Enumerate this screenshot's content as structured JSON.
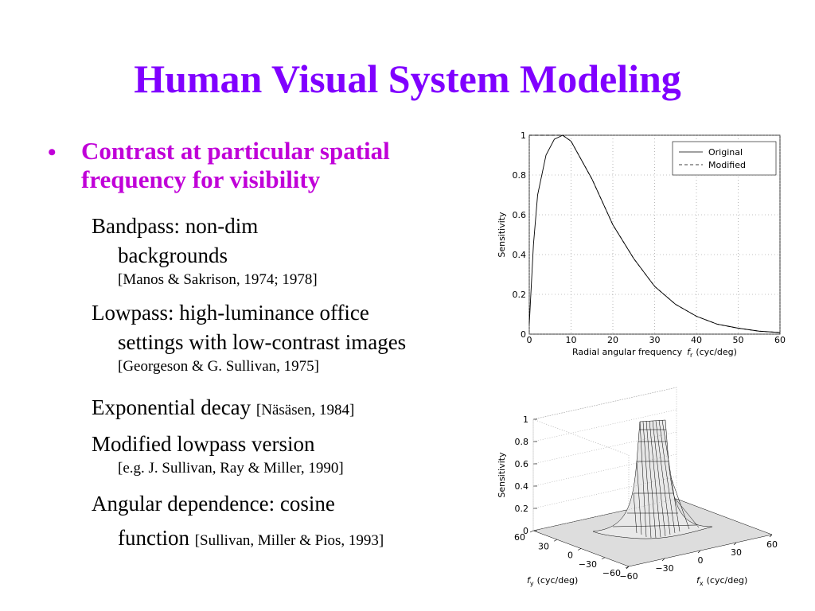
{
  "title": "Human Visual System Modeling",
  "bullet": "Contrast at particular spatial frequency for visibility",
  "items": [
    {
      "lines": [
        "Bandpass: non-dim",
        "backgrounds"
      ],
      "ref": "[Manos & Sakrison, 1974; 1978]"
    },
    {
      "lines": [
        "Lowpass: high-luminance office",
        "settings with low-contrast images"
      ],
      "ref": "[Georgeson & G. Sullivan, 1975]"
    },
    {
      "lines": [
        "Exponential decay"
      ],
      "ref": "[Näsäsen, 1984]"
    },
    {
      "lines": [
        "Modified lowpass version"
      ],
      "ref": "[e.g. J. Sullivan, Ray & Miller, 1990]"
    },
    {
      "lines": [
        "Angular dependence: cosine",
        "function"
      ],
      "ref": "[Sullivan, Miller & Pios, 1993]"
    }
  ],
  "chart_data": [
    {
      "type": "line",
      "x_label": {
        "text": "Radial angular frequency",
        "var": "f",
        "sub": "r",
        "unit": "(cyc/deg)"
      },
      "y_label": "Sensitivity",
      "x": [
        0,
        1,
        2,
        4,
        6,
        8,
        10,
        15,
        20,
        25,
        30,
        35,
        40,
        45,
        50,
        55,
        60
      ],
      "series": [
        {
          "name": "Original",
          "color": "#000000",
          "style": "solid",
          "values": [
            0.05,
            0.45,
            0.7,
            0.9,
            0.98,
            1.0,
            0.97,
            0.78,
            0.55,
            0.38,
            0.24,
            0.15,
            0.09,
            0.05,
            0.03,
            0.015,
            0.008
          ]
        },
        {
          "name": "Modified",
          "color": "#000000",
          "style": "dashed",
          "values": [
            1,
            1,
            1,
            1,
            1,
            1.0,
            0.97,
            0.78,
            0.55,
            0.38,
            0.24,
            0.15,
            0.09,
            0.05,
            0.03,
            0.015,
            0.008
          ]
        }
      ],
      "xlim": [
        0,
        60
      ],
      "xticks": [
        0,
        10,
        20,
        30,
        40,
        50,
        60
      ],
      "ylim": [
        0,
        1
      ],
      "yticks": [
        0,
        0.2,
        0.4,
        0.6,
        0.8,
        1
      ],
      "grid": true,
      "legend": "upper right"
    },
    {
      "type": "surface",
      "z_label": "Sensitivity",
      "x_label": {
        "var": "f",
        "sub": "x",
        "unit": "(cyc/deg)"
      },
      "y_label": {
        "var": "f",
        "sub": "y",
        "unit": "(cyc/deg)"
      },
      "xlim": [
        -60,
        60
      ],
      "ylim": [
        -60,
        60
      ],
      "zlim": [
        0,
        1
      ],
      "xticks": [
        {
          "value": -60,
          "label": "−60"
        },
        {
          "value": -30,
          "label": "−30"
        },
        0,
        30,
        60
      ],
      "yticks": [
        {
          "value": -60,
          "label": "−60"
        },
        {
          "value": -30,
          "label": "−30"
        },
        0,
        30,
        60
      ],
      "zticks": [
        0,
        0.2,
        0.4,
        0.6,
        0.8,
        1
      ]
    }
  ]
}
